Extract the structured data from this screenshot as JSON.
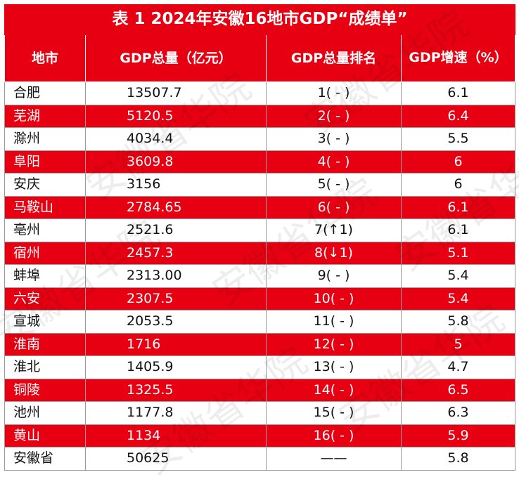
{
  "title": "表 1  2024年安徽16地市GDP“成绩单”",
  "headers": {
    "city": "地市",
    "gdp": "GDP总量（亿元）",
    "rank": "GDP总量排名",
    "growth": "GDP增速（%）"
  },
  "rows": [
    {
      "city": "合肥",
      "gdp": "13507.7",
      "rank": "1( - )",
      "growth": "6.1"
    },
    {
      "city": "芜湖",
      "gdp": "5120.5",
      "rank": "2( - )",
      "growth": "6.4"
    },
    {
      "city": "滁州",
      "gdp": "4034.4",
      "rank": "3( - )",
      "growth": "5.5"
    },
    {
      "city": "阜阳",
      "gdp": "3609.8",
      "rank": "4( - )",
      "growth": "6"
    },
    {
      "city": "安庆",
      "gdp": "3156",
      "rank": "5( - )",
      "growth": "6"
    },
    {
      "city": "马鞍山",
      "gdp": "2784.65",
      "rank": "6( - )",
      "growth": "6.1"
    },
    {
      "city": "亳州",
      "gdp": "2521.6",
      "rank": "7(↑1)",
      "growth": "6.1"
    },
    {
      "city": "宿州",
      "gdp": "2457.3",
      "rank": "8(↓1)",
      "growth": "5.1"
    },
    {
      "city": "蚌埠",
      "gdp": "2313.00",
      "rank": "9( - )",
      "growth": "5.4"
    },
    {
      "city": "六安",
      "gdp": "2307.5",
      "rank": "10( - )",
      "growth": "5.4"
    },
    {
      "city": "宣城",
      "gdp": "2053.5",
      "rank": "11( - )",
      "growth": "5.8"
    },
    {
      "city": "淮南",
      "gdp": "1716",
      "rank": "12( - )",
      "growth": "5"
    },
    {
      "city": "淮北",
      "gdp": "1405.9",
      "rank": "13( - )",
      "growth": "4.7"
    },
    {
      "city": "铜陵",
      "gdp": "1325.5",
      "rank": "14( - )",
      "growth": "6.5"
    },
    {
      "city": "池州",
      "gdp": "1177.8",
      "rank": "15( - )",
      "growth": "6.3"
    },
    {
      "city": "黄山",
      "gdp": "1134",
      "rank": "16( - )",
      "growth": "5.9"
    },
    {
      "city": "安徽省",
      "gdp": "50625",
      "rank": "——",
      "growth": "5.8"
    }
  ],
  "watermark": "安徽省华院",
  "colors": {
    "header_red": "#e60012",
    "row_red": "#e60012",
    "white": "#ffffff",
    "text_dark": "#111111"
  }
}
